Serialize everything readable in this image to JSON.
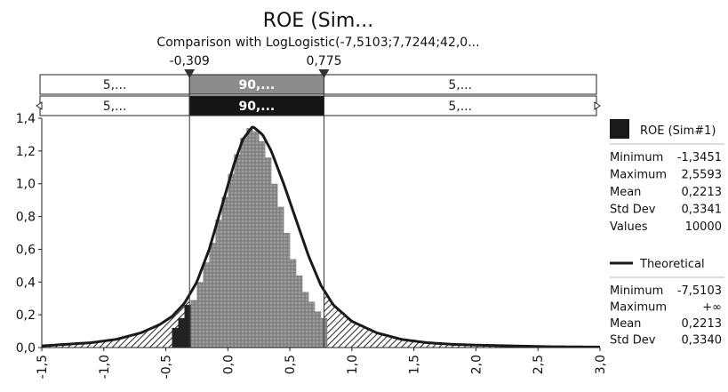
{
  "chart_data": {
    "type": "histogram",
    "title": "ROE (Sim...",
    "subtitle": "Comparison with LogLogistic(-7,5103;7,7244;42,0...",
    "xlim": [
      -1.5,
      3.0
    ],
    "ylim": [
      0.0,
      1.4
    ],
    "x_ticks": [
      "-1,5",
      "-1,0",
      "-0,5",
      "0,0",
      "0,5",
      "1,0",
      "1,5",
      "2,0",
      "2,5",
      "3,0"
    ],
    "y_ticks": [
      "0,0",
      "0,2",
      "0,4",
      "0,6",
      "0,8",
      "1,0",
      "1,2",
      "1,4"
    ],
    "x_tick_values": [
      -1.5,
      -1.0,
      -0.5,
      0.0,
      0.5,
      1.0,
      1.5,
      2.0,
      2.5,
      3.0
    ],
    "y_tick_values": [
      0.0,
      0.2,
      0.4,
      0.6,
      0.8,
      1.0,
      1.2,
      1.4
    ],
    "delimiters": {
      "left_value": -0.309,
      "right_value": 0.775,
      "left_label": "-0,309",
      "right_label": "0,775"
    },
    "bands": {
      "row1": [
        "5,...",
        "90,...",
        "5,..."
      ],
      "row2": [
        "5,...",
        "90,...",
        "5,..."
      ]
    },
    "series": [
      {
        "name": "ROE (Sim#1)",
        "kind": "histogram",
        "bin_edges": [
          -0.45,
          -0.4,
          -0.35,
          -0.3,
          -0.25,
          -0.2,
          -0.15,
          -0.1,
          -0.05,
          0.0,
          0.05,
          0.1,
          0.15,
          0.2,
          0.25,
          0.3,
          0.35,
          0.4,
          0.45,
          0.5,
          0.55,
          0.6,
          0.65,
          0.7,
          0.75,
          0.8
        ],
        "values": [
          0.12,
          0.18,
          0.26,
          0.29,
          0.4,
          0.52,
          0.64,
          0.78,
          0.92,
          1.06,
          1.18,
          1.28,
          1.34,
          1.32,
          1.26,
          1.16,
          1.0,
          0.86,
          0.7,
          0.54,
          0.44,
          0.34,
          0.28,
          0.22,
          0.18
        ]
      },
      {
        "name": "Theoretical",
        "kind": "line",
        "x": [
          -1.5,
          -1.3,
          -1.1,
          -0.9,
          -0.7,
          -0.55,
          -0.45,
          -0.35,
          -0.25,
          -0.15,
          -0.05,
          0.05,
          0.12,
          0.2,
          0.28,
          0.35,
          0.45,
          0.55,
          0.65,
          0.75,
          0.85,
          1.0,
          1.2,
          1.4,
          1.6,
          1.8,
          2.0,
          2.3,
          2.6,
          3.0
        ],
        "y": [
          0.01,
          0.02,
          0.03,
          0.05,
          0.09,
          0.14,
          0.19,
          0.27,
          0.4,
          0.6,
          0.86,
          1.12,
          1.27,
          1.35,
          1.3,
          1.2,
          1.0,
          0.78,
          0.56,
          0.38,
          0.26,
          0.16,
          0.09,
          0.05,
          0.03,
          0.02,
          0.015,
          0.01,
          0.005,
          0.003
        ]
      }
    ],
    "legend": {
      "placement": "right",
      "sim": {
        "name": "ROE (Sim#1)",
        "swatch_color": "#1a1a1a",
        "stats": [
          {
            "label": "Minimum",
            "value": "-1,3451"
          },
          {
            "label": "Maximum",
            "value": "2,5593"
          },
          {
            "label": "Mean",
            "value": "0,2213"
          },
          {
            "label": "Std Dev",
            "value": "0,3341"
          },
          {
            "label": "Values",
            "value": "10000"
          }
        ]
      },
      "theoretical": {
        "name": "Theoretical",
        "line_color": "#1a1a1a",
        "stats": [
          {
            "label": "Minimum",
            "value": "-7,5103"
          },
          {
            "label": "Maximum",
            "value": "+∞"
          },
          {
            "label": "Mean",
            "value": "0,2213"
          },
          {
            "label": "Std Dev",
            "value": "0,3340"
          }
        ]
      }
    },
    "colors": {
      "histogram_fill": "#9a9a9a",
      "histogram_dark": "#222222",
      "band_top_fill": "#8c8c8c",
      "band_bottom_fill": "#151515",
      "curve": "#1a1a1a",
      "hatch": "#333333"
    },
    "grid": false
  }
}
